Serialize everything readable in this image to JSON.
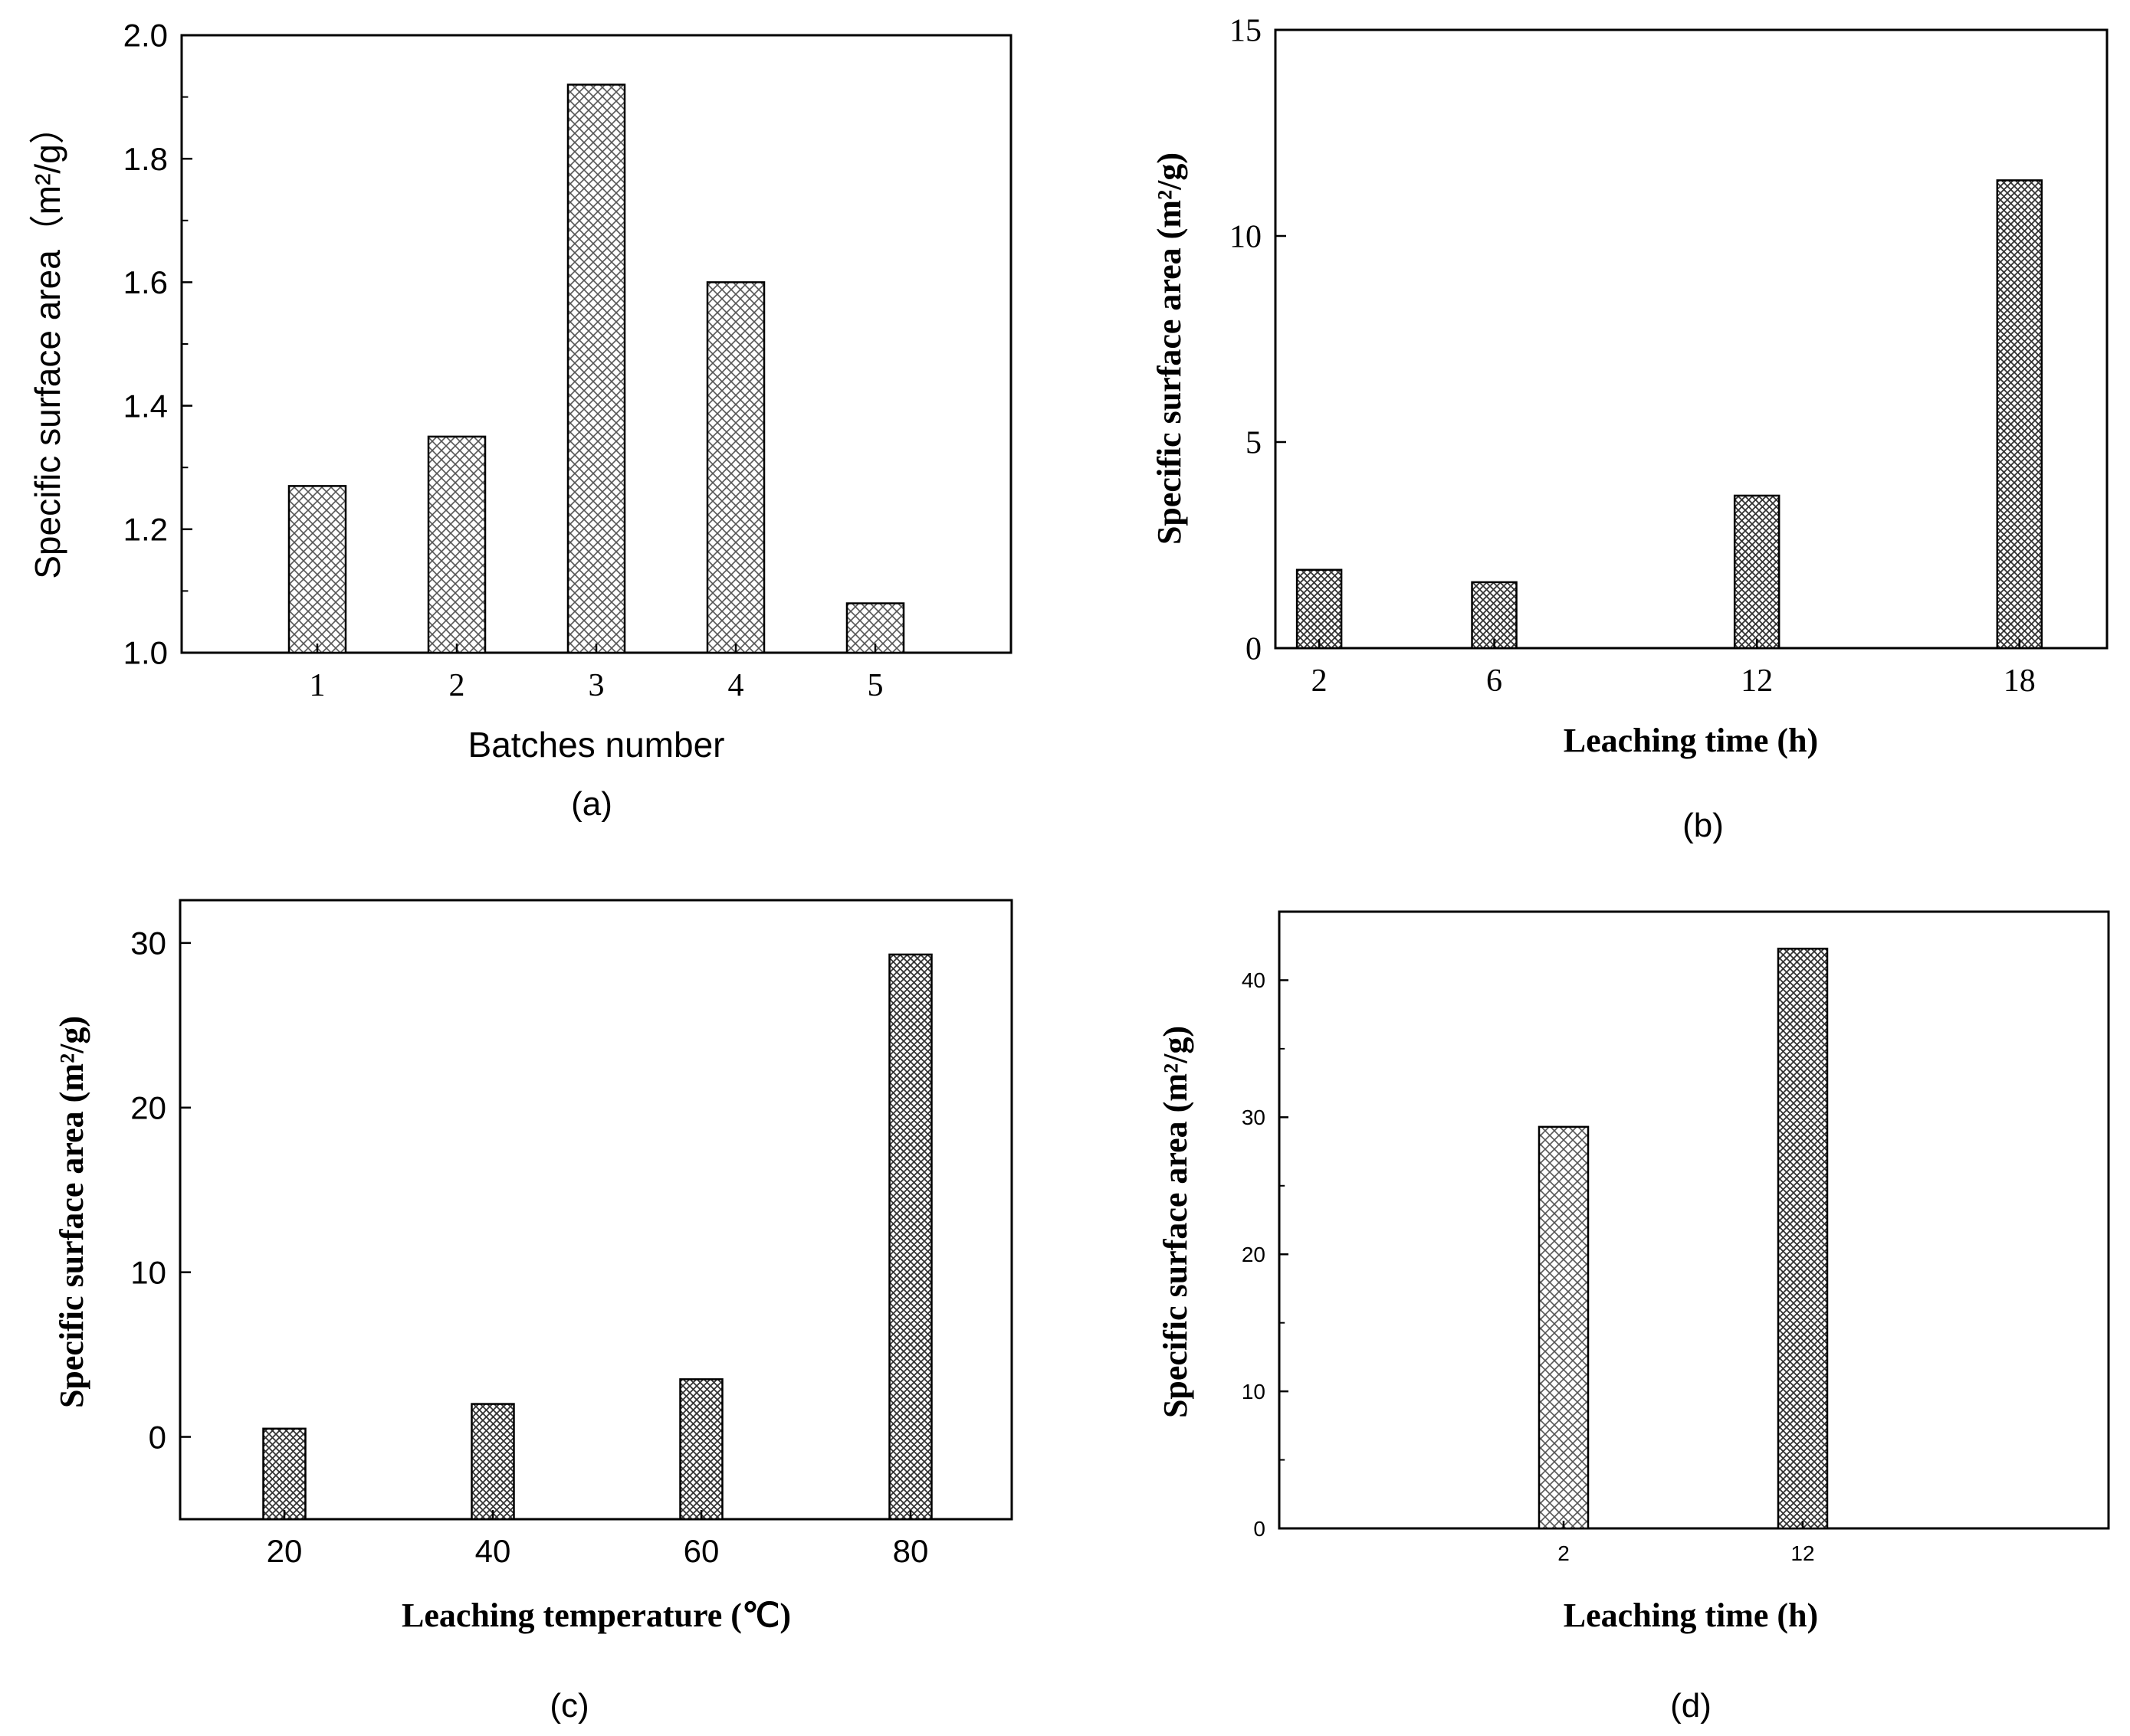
{
  "chart_data": [
    {
      "id": "a",
      "type": "bar",
      "caption": "(a)",
      "xlabel": "Batches number",
      "ylabel": "Specific surface area（m²/g）",
      "categories": [
        "1",
        "2",
        "3",
        "4",
        "5"
      ],
      "values": [
        1.27,
        1.35,
        1.92,
        1.6,
        1.08
      ],
      "ylim": [
        1.0,
        2.0
      ],
      "yticks": [
        "1.0",
        "1.2",
        "1.4",
        "1.6",
        "1.8",
        "2.0"
      ],
      "grid": false
    },
    {
      "id": "b",
      "type": "bar",
      "caption": "(b)",
      "xlabel": "Leaching time (h)",
      "ylabel": "Specific surface area (m²/g)",
      "x": [
        2,
        6,
        12,
        18
      ],
      "categories": [
        "2",
        "6",
        "12",
        "18"
      ],
      "values": [
        1.9,
        1.6,
        3.7,
        11.35
      ],
      "xlim": [
        1,
        20
      ],
      "ylim": [
        0,
        15
      ],
      "yticks": [
        "0",
        "5",
        "10",
        "15"
      ],
      "grid": false
    },
    {
      "id": "c",
      "type": "bar",
      "caption": "(c)",
      "xlabel": "Leaching temperature (℃)",
      "ylabel": "Specific surface area (m²/g)",
      "categories": [
        "20",
        "40",
        "60",
        "80"
      ],
      "values": [
        0.5,
        2.0,
        3.5,
        29.3
      ],
      "ylim": [
        -5,
        32.6
      ],
      "yticks": [
        "0",
        "10",
        "20",
        "30"
      ],
      "grid": false
    },
    {
      "id": "d",
      "type": "bar",
      "caption": "(d)",
      "xlabel": "Leaching time (h)",
      "ylabel": "Specific surface area (m²/g)",
      "categories": [
        "2",
        "12"
      ],
      "values": [
        29.3,
        42.3
      ],
      "ylim": [
        0,
        45
      ],
      "yticks": [
        "0",
        "10",
        "20",
        "30",
        "40"
      ],
      "grid": false
    }
  ],
  "colors": {
    "axis": "#000000",
    "hatch_light": "#555555",
    "hatch_dark": "#333333",
    "bar_fill": "#ffffff"
  }
}
